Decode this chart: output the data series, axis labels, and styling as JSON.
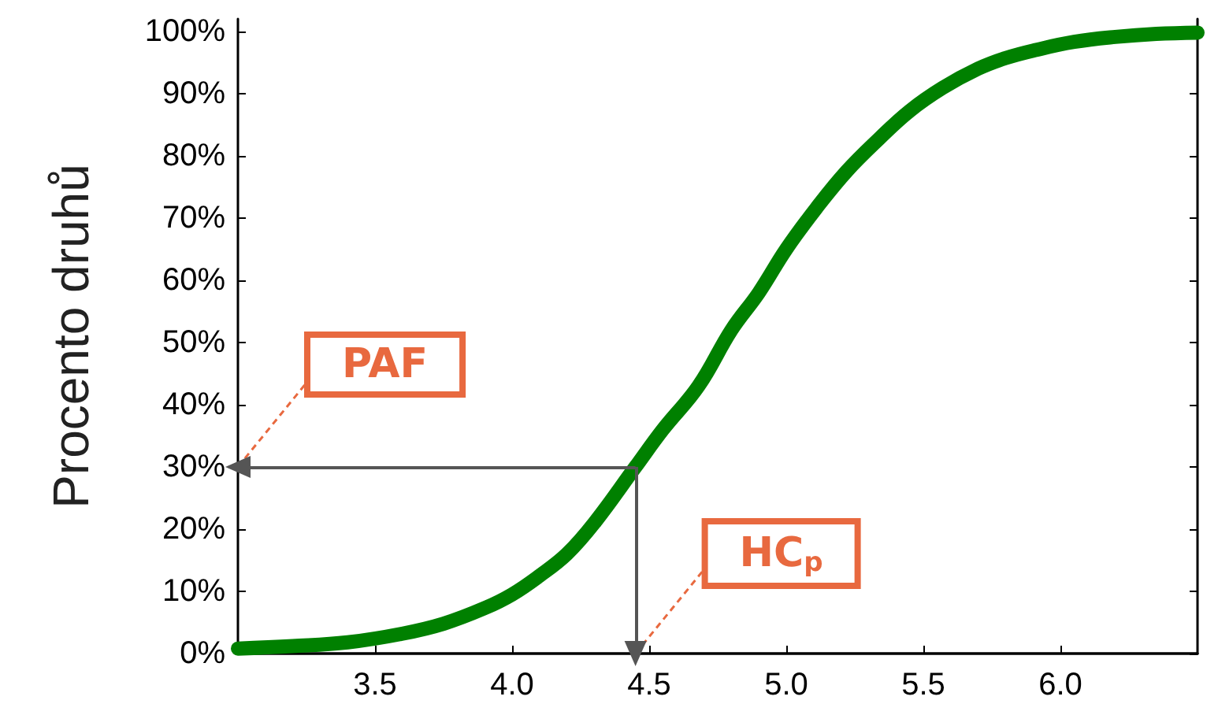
{
  "chart_data": {
    "type": "line",
    "ylabel": "Procento druhů",
    "x": [
      3.0,
      3.2,
      3.4,
      3.6,
      3.75,
      3.9,
      4.0,
      4.1,
      4.2,
      4.3,
      4.45,
      4.55,
      4.68,
      4.8,
      4.9,
      5.0,
      5.11,
      5.22,
      5.34,
      5.45,
      5.57,
      5.7,
      5.8,
      5.91,
      6.05,
      6.2,
      6.35,
      6.5
    ],
    "values": [
      0.8,
      1.2,
      1.8,
      3.2,
      4.8,
      7.3,
      9.5,
      12.5,
      16,
      21,
      30,
      36,
      43,
      52,
      58,
      65,
      71.6,
      77.5,
      82.8,
      87.2,
      90.9,
      94,
      95.7,
      97,
      98.3,
      99.1,
      99.6,
      99.8
    ],
    "color": "#008000",
    "marker": "none",
    "xlim": [
      3.0,
      6.5
    ],
    "xticks": [
      3.5,
      {
        "value": 4,
        "label": "4.0"
      },
      4.5,
      {
        "value": 5,
        "label": "5.0"
      },
      5.5,
      {
        "value": 6,
        "label": "6.0"
      }
    ],
    "ylim": [
      0,
      102
    ],
    "yticks": [
      {
        "value": 0,
        "label": "0%"
      },
      {
        "value": 10,
        "label": "10%"
      },
      {
        "value": 20,
        "label": "20%"
      },
      {
        "value": 30,
        "label": "30%"
      },
      {
        "value": 40,
        "label": "40%"
      },
      {
        "value": 50,
        "label": "50%"
      },
      {
        "value": 60,
        "label": "60%"
      },
      {
        "value": 70,
        "label": "70%"
      },
      {
        "value": 80,
        "label": "80%"
      },
      {
        "value": 90,
        "label": "90%"
      },
      {
        "value": 100,
        "label": "100%"
      }
    ],
    "grid": false,
    "ref_lines": [
      {
        "axis": "y",
        "value": 30,
        "label": "PAF",
        "color": "#555555"
      },
      {
        "axis": "x",
        "value": 4.45,
        "label": "HC$_{p}$",
        "color": "#555555"
      }
    ]
  }
}
